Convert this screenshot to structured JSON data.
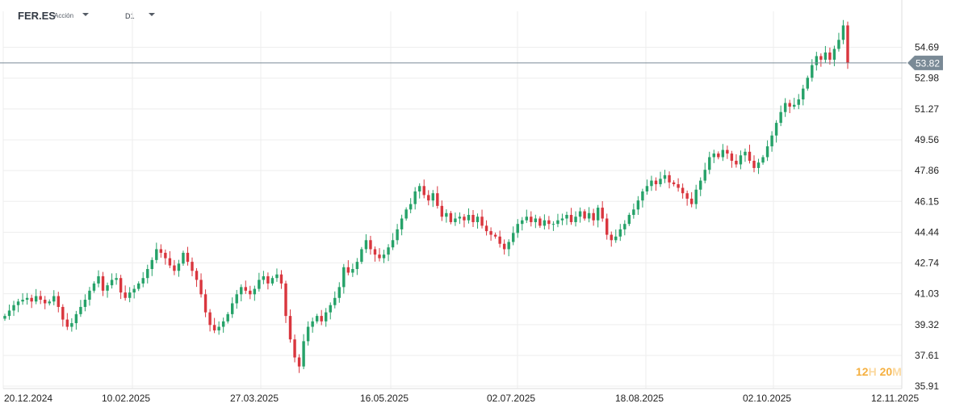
{
  "toolbar": {
    "symbol": "FER.ES",
    "asset_type": "Acción",
    "timeframe": "D1"
  },
  "countdown": {
    "hours": "12",
    "hour_unit": "H",
    "minutes": "20",
    "minute_unit": "M"
  },
  "colors": {
    "up": "#26a269",
    "down": "#d9363e",
    "grid": "#eeeeee",
    "last_price_line": "#7a8a96",
    "last_price_tag": "#7a8a96"
  },
  "chart_data": {
    "type": "candlestick",
    "title": "",
    "xlabel": "",
    "ylabel": "",
    "grid": true,
    "y_ticks": [
      "35.91",
      "37.61",
      "39.32",
      "41.03",
      "42.74",
      "44.44",
      "46.15",
      "47.86",
      "49.56",
      "51.27",
      "52.98",
      "54.69"
    ],
    "x_ticks": [
      "20.12.2024",
      "10.02.2025",
      "27.03.2025",
      "16.05.2025",
      "02.07.2025",
      "18.08.2025",
      "02.10.2025",
      "12.11.2025"
    ],
    "last_price": "53.82",
    "ylim": [
      35.91,
      56.4
    ],
    "close_start": 39.8,
    "closes": [
      39.8,
      40.1,
      40.4,
      40.6,
      40.7,
      40.8,
      40.6,
      40.9,
      40.7,
      40.5,
      40.6,
      40.9,
      40.3,
      39.6,
      39.2,
      39.4,
      39.9,
      40.3,
      40.7,
      41.2,
      41.6,
      42.0,
      41.2,
      41.5,
      41.8,
      41.9,
      41.1,
      40.8,
      41.1,
      41.3,
      41.6,
      41.9,
      42.4,
      42.9,
      43.5,
      43.3,
      43.0,
      42.6,
      42.3,
      42.7,
      43.3,
      42.8,
      42.3,
      41.8,
      41.0,
      40.0,
      39.3,
      39.0,
      39.2,
      39.5,
      39.9,
      40.5,
      41.0,
      41.4,
      41.2,
      41.0,
      41.3,
      41.8,
      42.0,
      41.6,
      41.9,
      42.1,
      41.6,
      39.8,
      38.5,
      37.5,
      37.0,
      38.4,
      39.2,
      39.5,
      39.8,
      39.5,
      40.0,
      40.4,
      40.8,
      41.4,
      42.5,
      42.2,
      42.4,
      42.8,
      43.5,
      44.0,
      43.5,
      43.2,
      43.0,
      43.2,
      43.6,
      44.0,
      44.6,
      45.2,
      45.7,
      46.0,
      46.7,
      47.0,
      46.5,
      46.2,
      46.6,
      45.9,
      45.3,
      45.5,
      45.0,
      45.2,
      45.3,
      45.1,
      45.4,
      45.0,
      45.3,
      44.8,
      44.5,
      44.3,
      44.2,
      43.8,
      43.5,
      43.9,
      44.4,
      44.9,
      45.1,
      45.3,
      45.0,
      45.2,
      44.8,
      45.1,
      44.9,
      44.9,
      45.1,
      45.2,
      45.4,
      45.0,
      45.3,
      45.6,
      45.2,
      45.5,
      45.1,
      45.8,
      45.2,
      44.3,
      44.0,
      44.2,
      44.6,
      44.9,
      45.4,
      45.7,
      46.2,
      46.7,
      47.0,
      47.3,
      47.1,
      47.4,
      47.6,
      47.2,
      47.1,
      46.9,
      46.6,
      46.3,
      46.0,
      46.8,
      47.3,
      47.9,
      48.6,
      48.8,
      48.6,
      49.0,
      48.8,
      48.4,
      48.2,
      48.7,
      48.9,
      48.4,
      48.0,
      48.3,
      48.6,
      49.2,
      49.8,
      50.5,
      51.1,
      51.6,
      51.4,
      51.5,
      51.8,
      52.4,
      53.0,
      53.7,
      54.2,
      54.0,
      54.4,
      54.0,
      54.6,
      55.1,
      55.9,
      53.82
    ],
    "wick": 0.3
  }
}
